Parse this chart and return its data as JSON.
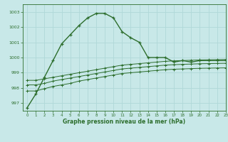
{
  "title": "Graphe pression niveau de la mer (hPa)",
  "bg_color": "#c8e8e8",
  "grid_color": "#b0d8d8",
  "line_color": "#2d6e2d",
  "xlim": [
    -0.5,
    23
  ],
  "ylim": [
    996.5,
    1003.5
  ],
  "yticks": [
    997,
    998,
    999,
    1000,
    1001,
    1002,
    1003
  ],
  "xticks": [
    0,
    1,
    2,
    3,
    4,
    5,
    6,
    7,
    8,
    9,
    10,
    11,
    12,
    13,
    14,
    15,
    16,
    17,
    18,
    19,
    20,
    21,
    22,
    23
  ],
  "series1_x": [
    0,
    1,
    2,
    3,
    4,
    5,
    6,
    7,
    8,
    9,
    10,
    11,
    12,
    13,
    14,
    15,
    16,
    17,
    18,
    19,
    20,
    21,
    22,
    23
  ],
  "series1_y": [
    996.7,
    997.6,
    998.7,
    999.8,
    1000.9,
    1001.5,
    1002.1,
    1002.6,
    1002.9,
    1002.9,
    1002.6,
    1001.7,
    1001.3,
    1001.0,
    1000.0,
    1000.0,
    1000.0,
    999.7,
    999.8,
    999.7,
    999.8,
    999.8,
    999.8,
    999.8
  ],
  "series2_x": [
    0,
    1,
    2,
    3,
    4,
    5,
    6,
    7,
    8,
    9,
    10,
    11,
    12,
    13,
    14,
    15,
    16,
    17,
    18,
    19,
    20,
    21,
    22,
    23
  ],
  "series2_y": [
    998.5,
    998.5,
    998.6,
    998.7,
    998.8,
    998.9,
    999.0,
    999.1,
    999.2,
    999.3,
    999.4,
    999.5,
    999.55,
    999.6,
    999.65,
    999.7,
    999.75,
    999.78,
    999.8,
    999.82,
    999.84,
    999.85,
    999.86,
    999.87
  ],
  "series3_x": [
    0,
    1,
    2,
    3,
    4,
    5,
    6,
    7,
    8,
    9,
    10,
    11,
    12,
    13,
    14,
    15,
    16,
    17,
    18,
    19,
    20,
    21,
    22,
    23
  ],
  "series3_y": [
    998.2,
    998.2,
    998.3,
    998.45,
    998.55,
    998.65,
    998.75,
    998.85,
    998.95,
    999.05,
    999.15,
    999.25,
    999.3,
    999.35,
    999.4,
    999.45,
    999.5,
    999.53,
    999.55,
    999.57,
    999.59,
    999.6,
    999.61,
    999.62
  ],
  "series4_x": [
    0,
    1,
    2,
    3,
    4,
    5,
    6,
    7,
    8,
    9,
    10,
    11,
    12,
    13,
    14,
    15,
    16,
    17,
    18,
    19,
    20,
    21,
    22,
    23
  ],
  "series4_y": [
    997.8,
    997.8,
    997.95,
    998.1,
    998.2,
    998.3,
    998.45,
    998.55,
    998.65,
    998.75,
    998.85,
    998.95,
    999.0,
    999.05,
    999.1,
    999.15,
    999.2,
    999.23,
    999.25,
    999.27,
    999.29,
    999.3,
    999.31,
    999.32
  ]
}
